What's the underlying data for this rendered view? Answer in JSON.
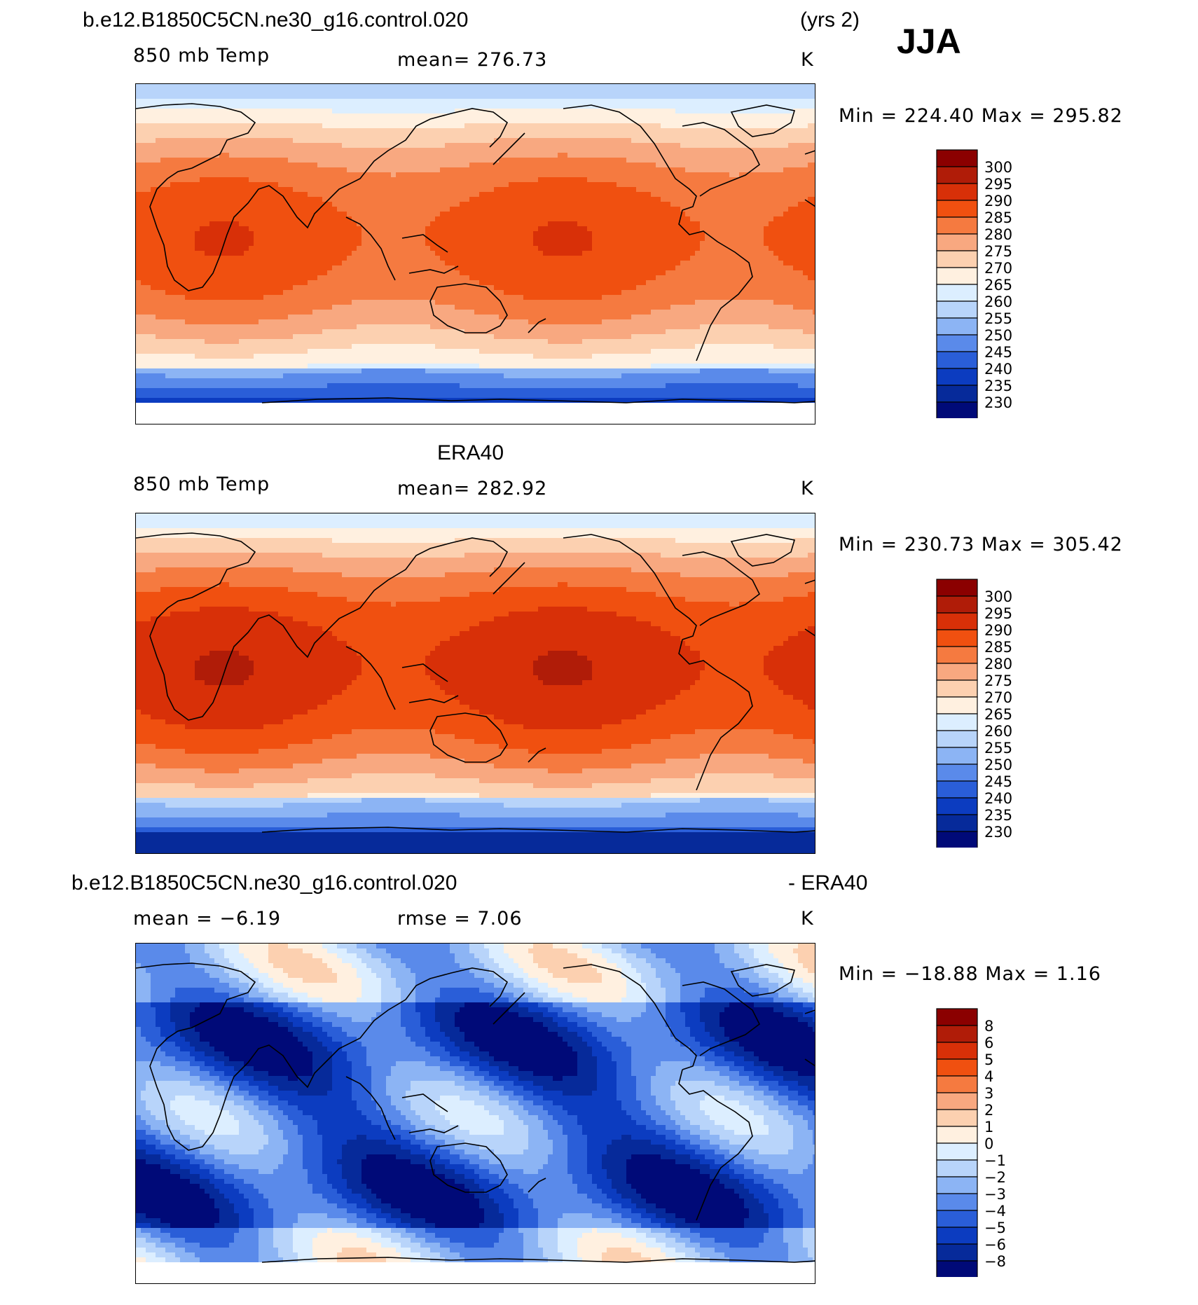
{
  "header": {
    "case_name": "b.e12.B1850C5CN.ne30_g16.control.020",
    "years": "(yrs 2)",
    "season": "JJA"
  },
  "panels": [
    {
      "title": "b.e12.B1850C5CN.ne30_g16.control.020",
      "variable": "850 mb Temp",
      "stat": "mean= 276.73",
      "units": "K",
      "minmax": "Min = 224.40 Max = 295.82",
      "scheme": "abs",
      "colorbar": {
        "labels": [
          "300",
          "295",
          "290",
          "285",
          "280",
          "275",
          "270",
          "265",
          "260",
          "255",
          "250",
          "245",
          "240",
          "235",
          "230"
        ],
        "colors": [
          "#8b0000",
          "#b01c08",
          "#d83008",
          "#f05010",
          "#f57a40",
          "#f8a880",
          "#fcd0b0",
          "#fff0e0",
          "#dceeff",
          "#b8d4fa",
          "#8cb4f4",
          "#5a8aea",
          "#2a5ed8",
          "#0c3cc0",
          "#062a9a",
          "#000a78"
        ]
      }
    },
    {
      "title": "ERA40",
      "variable": "850 mb Temp",
      "stat": "mean= 282.92",
      "units": "K",
      "minmax": "Min = 230.73 Max = 305.42",
      "scheme": "abs",
      "colorbar": {
        "labels": [
          "300",
          "295",
          "290",
          "285",
          "280",
          "275",
          "270",
          "265",
          "260",
          "255",
          "250",
          "245",
          "240",
          "235",
          "230"
        ],
        "colors": [
          "#8b0000",
          "#b01c08",
          "#d83008",
          "#f05010",
          "#f57a40",
          "#f8a880",
          "#fcd0b0",
          "#fff0e0",
          "#dceeff",
          "#b8d4fa",
          "#8cb4f4",
          "#5a8aea",
          "#2a5ed8",
          "#0c3cc0",
          "#062a9a",
          "#000a78"
        ]
      }
    },
    {
      "title": "b.e12.B1850C5CN.ne30_g16.control.020",
      "title_suffix": "- ERA40",
      "variable": "mean = −6.19",
      "stat": "rmse = 7.06",
      "units": "K",
      "minmax": "Min = −18.88 Max = 1.16",
      "scheme": "diff",
      "colorbar": {
        "labels": [
          "8",
          "6",
          "5",
          "4",
          "3",
          "2",
          "1",
          "0",
          "−1",
          "−2",
          "−3",
          "−4",
          "−5",
          "−6",
          "−8"
        ],
        "colors": [
          "#8b0000",
          "#b01c08",
          "#d83008",
          "#f05010",
          "#f57a40",
          "#f8a880",
          "#fcd0b0",
          "#fff0e0",
          "#dceeff",
          "#b8d4fa",
          "#8cb4f4",
          "#5a8aea",
          "#2a5ed8",
          "#0c3cc0",
          "#062a9a",
          "#000a78"
        ]
      }
    }
  ]
}
